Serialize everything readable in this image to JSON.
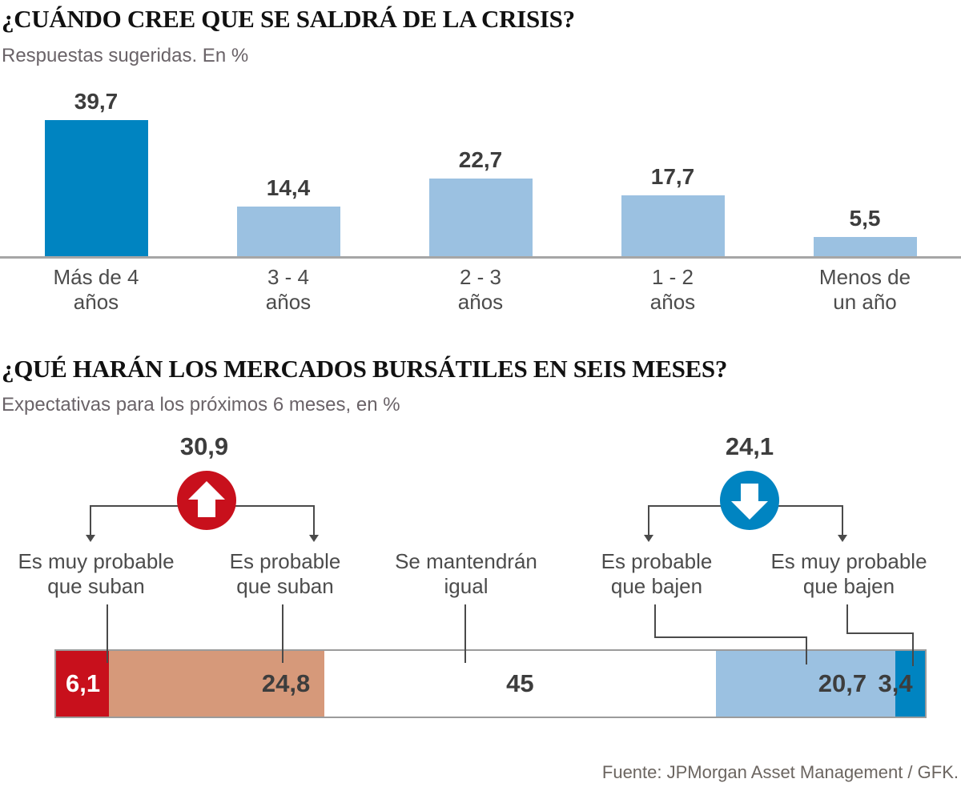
{
  "colors": {
    "dark_blue": "#0084c1",
    "light_blue": "#9bc1e1",
    "red": "#c8101c",
    "salmon": "#d6997a",
    "white": "#ffffff",
    "baseline_gray": "#a6a6a6",
    "connector_gray": "#4a4a4a",
    "text_dark": "#3d3d3d",
    "label_gray": "#4c4c4c"
  },
  "chart_data": [
    {
      "type": "bar",
      "title": "¿CUÁNDO CREE QUE SE SALDRÁ DE LA CRISIS?",
      "subtitle": "Respuestas sugeridas. En %",
      "categories": [
        "Más de 4 años",
        "3 - 4 años",
        "2 - 3 años",
        "1 - 2 años",
        "Menos de un año"
      ],
      "category_lines": [
        [
          "Más de 4",
          "años"
        ],
        [
          "3 - 4",
          "años"
        ],
        [
          "2 - 3",
          "años"
        ],
        [
          "1 - 2",
          "años"
        ],
        [
          "Menos de",
          "un año"
        ]
      ],
      "values": [
        39.7,
        14.4,
        22.7,
        17.7,
        5.5
      ],
      "value_labels": [
        "39,7",
        "14,4",
        "22,7",
        "17,7",
        "5,5"
      ],
      "highlight_index": 0,
      "xlabel": "",
      "ylabel": "",
      "ylim": [
        0,
        42
      ],
      "grid": false,
      "legend": false
    },
    {
      "type": "stacked-bar",
      "title": "¿QUÉ HARÁN LOS MERCADOS BURSÁTILES EN SEIS MESES?",
      "subtitle": "Expectativas para los próximos 6 meses, en %",
      "segments": [
        {
          "label": "Es muy probable que suban",
          "label_lines": [
            "Es muy probable",
            "que suban"
          ],
          "value": 6.1,
          "display": "6,1",
          "color": "#c8101c",
          "text_color": "#ffffff"
        },
        {
          "label": "Es probable que suban",
          "label_lines": [
            "Es probable",
            "que suban"
          ],
          "value": 24.8,
          "display": "24,8",
          "color": "#d6997a"
        },
        {
          "label": "Se mantendrán igual",
          "label_lines": [
            "Se mantendrán",
            "igual"
          ],
          "value": 45,
          "display": "45",
          "color": "#ffffff"
        },
        {
          "label": "Es probable que bajen",
          "label_lines": [
            "Es probable",
            "que bajen"
          ],
          "value": 20.7,
          "display": "20,7",
          "color": "#9bc1e1"
        },
        {
          "label": "Es muy probable que bajen",
          "label_lines": [
            "Es muy probable",
            "que bajen"
          ],
          "value": 3.4,
          "display": "3,4",
          "color": "#0084c1"
        }
      ],
      "aggregates": [
        {
          "label": "30,9",
          "value": 30.9,
          "direction": "up",
          "color": "#c8101c"
        },
        {
          "label": "24,1",
          "value": 24.1,
          "direction": "down",
          "color": "#0084c1"
        }
      ],
      "total": 100,
      "grid": false,
      "legend": false
    }
  ],
  "footer": {
    "source": "Fuente: JPMorgan Asset Management / GFK."
  }
}
